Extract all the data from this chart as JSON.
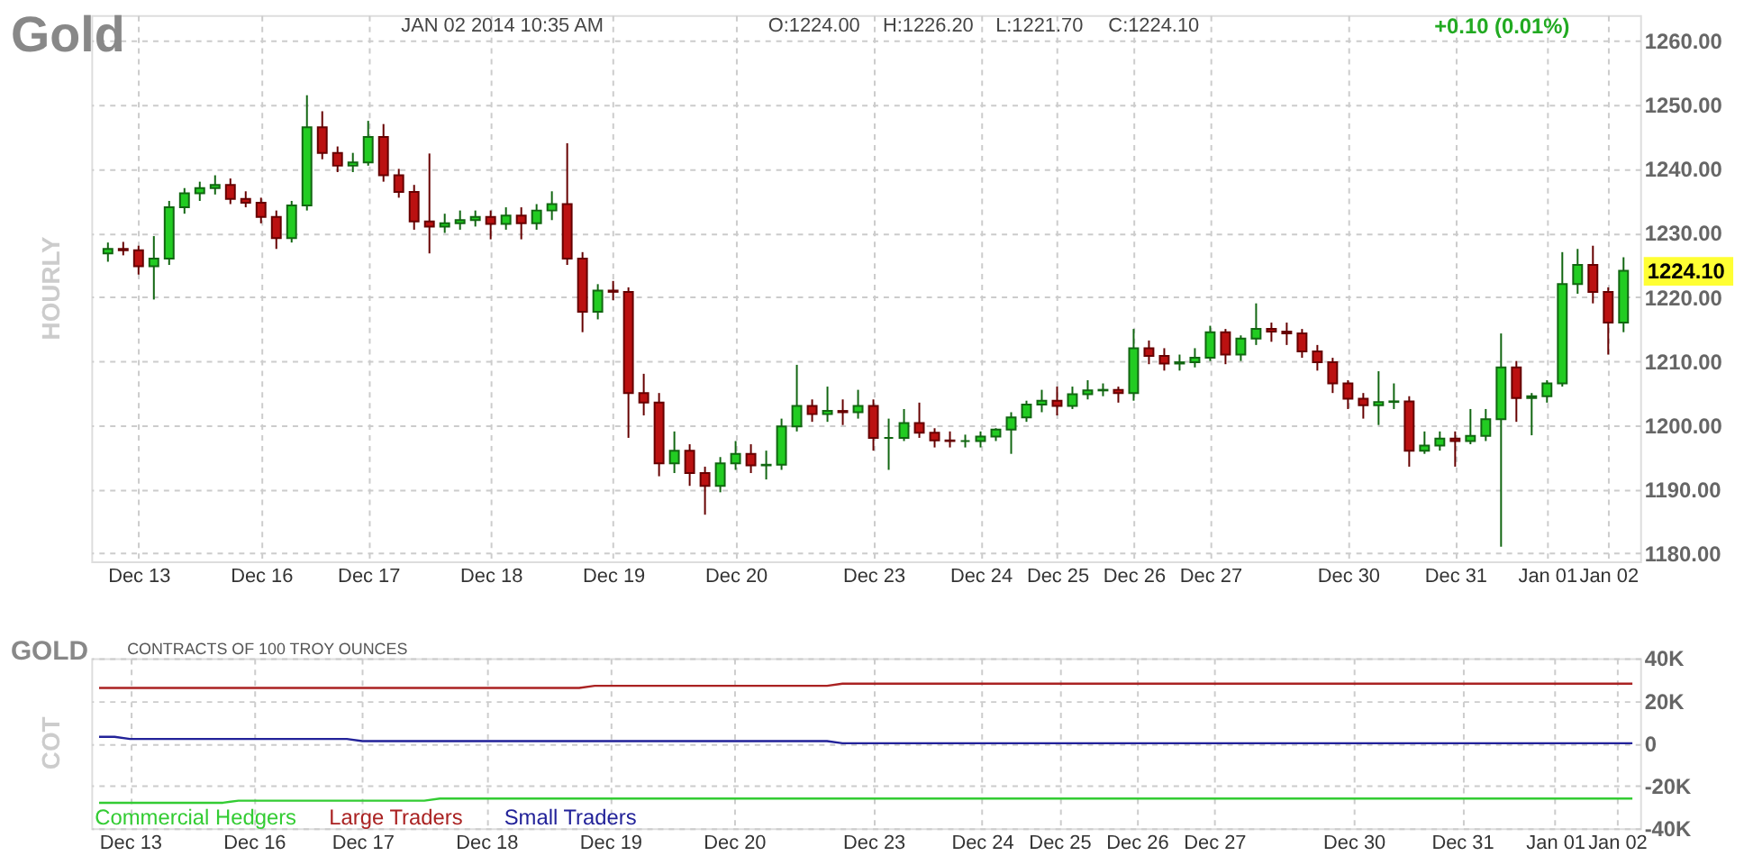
{
  "chart_data": [
    {
      "type": "candlestick",
      "title": "Gold",
      "ylabel": "HOURLY",
      "annotations": [
        "JAN 02 2014 10:35 AM",
        "O:1224.00",
        "H:1226.20",
        "L:1221.70",
        "C:1224.10",
        "+0.10 (0.01%)",
        "1224.10"
      ],
      "categories": [
        null,
        null,
        "Dec 13",
        null,
        null,
        null,
        null,
        null,
        null,
        null,
        "Dec 16",
        null,
        null,
        null,
        null,
        null,
        null,
        "Dec 17",
        null,
        null,
        null,
        null,
        null,
        null,
        null,
        "Dec 18",
        null,
        null,
        null,
        null,
        null,
        null,
        null,
        "Dec 19",
        null,
        null,
        null,
        null,
        null,
        null,
        null,
        "Dec 20",
        null,
        null,
        null,
        null,
        null,
        null,
        null,
        null,
        "Dec 23",
        null,
        null,
        null,
        null,
        null,
        null,
        "Dec 24",
        null,
        null,
        null,
        null,
        "Dec 25",
        null,
        null,
        null,
        null,
        "Dec 26",
        null,
        null,
        null,
        null,
        "Dec 27",
        null,
        null,
        null,
        null,
        null,
        null,
        null,
        null,
        "Dec 30",
        null,
        null,
        null,
        null,
        null,
        null,
        "Dec 31",
        null,
        null,
        null,
        null,
        null,
        "Jan 01",
        null,
        null,
        null,
        "Jan 02",
        null
      ],
      "ohlc": [
        [
          1226.8,
          1228.5,
          1225.5,
          1227.5
        ],
        [
          1227.5,
          1228.6,
          1226.5,
          1227.3
        ],
        [
          1227.3,
          1228,
          1223.5,
          1224.8
        ],
        [
          1224.8,
          1229.5,
          1219.6,
          1226
        ],
        [
          1226,
          1235,
          1225,
          1234
        ],
        [
          1234,
          1237,
          1233,
          1236.2
        ],
        [
          1236.2,
          1238,
          1235,
          1237
        ],
        [
          1237,
          1239,
          1236,
          1237.5
        ],
        [
          1237.5,
          1238.5,
          1234.5,
          1235.3
        ],
        [
          1235.3,
          1236.5,
          1234,
          1234.7
        ],
        [
          1234.7,
          1235.5,
          1231.5,
          1232.5
        ],
        [
          1232.5,
          1233.5,
          1227.5,
          1229.2
        ],
        [
          1229.2,
          1235,
          1228.5,
          1234.3
        ],
        [
          1234.3,
          1251.5,
          1233.5,
          1246.5
        ],
        [
          1246.5,
          1249,
          1241.5,
          1242.5
        ],
        [
          1242.5,
          1243.5,
          1239.5,
          1240.5
        ],
        [
          1240.5,
          1242.5,
          1239.5,
          1241
        ],
        [
          1241,
          1247.5,
          1240.5,
          1245
        ],
        [
          1245,
          1247,
          1238,
          1239
        ],
        [
          1239,
          1240,
          1235.5,
          1236.4
        ],
        [
          1236.4,
          1237.5,
          1230.5,
          1231.8
        ],
        [
          1231.8,
          1242.4,
          1226.8,
          1231
        ],
        [
          1231,
          1233,
          1230,
          1231.5
        ],
        [
          1231.5,
          1233.5,
          1230.5,
          1232
        ],
        [
          1232,
          1233.5,
          1231,
          1232.5
        ],
        [
          1232.5,
          1233.5,
          1229,
          1231.4
        ],
        [
          1231.4,
          1234,
          1230.5,
          1232.7
        ],
        [
          1232.7,
          1234,
          1229,
          1231.5
        ],
        [
          1231.5,
          1234.5,
          1230.5,
          1233.5
        ],
        [
          1233.5,
          1236.5,
          1232,
          1234.5
        ],
        [
          1234.5,
          1244,
          1225,
          1226
        ],
        [
          1226,
          1227,
          1214.5,
          1217.7
        ],
        [
          1217.7,
          1222,
          1216.5,
          1221
        ],
        [
          1221,
          1222.5,
          1219.5,
          1220.8
        ],
        [
          1220.8,
          1221.5,
          1198,
          1205
        ],
        [
          1205,
          1208,
          1201.5,
          1203.5
        ],
        [
          1203.5,
          1205,
          1192,
          1194
        ],
        [
          1194,
          1199,
          1192.5,
          1196
        ],
        [
          1196,
          1197,
          1190.5,
          1192.5
        ],
        [
          1192.5,
          1193.5,
          1186,
          1190.5
        ],
        [
          1190.5,
          1195,
          1189.5,
          1194
        ],
        [
          1194,
          1197.5,
          1193,
          1195.5
        ],
        [
          1195.5,
          1197,
          1192.5,
          1193.7
        ],
        [
          1193.7,
          1196,
          1191.5,
          1193.8
        ],
        [
          1193.8,
          1201,
          1193,
          1199.8
        ],
        [
          1199.8,
          1209.4,
          1199,
          1203
        ],
        [
          1203,
          1204,
          1200.5,
          1201.7
        ],
        [
          1201.7,
          1206,
          1200.5,
          1202.2
        ],
        [
          1202.2,
          1204,
          1200,
          1202
        ],
        [
          1202,
          1205.5,
          1201,
          1203
        ],
        [
          1203,
          1204,
          1196,
          1198
        ],
        [
          1198,
          1201,
          1193,
          1198
        ],
        [
          1198,
          1202.5,
          1197.5,
          1200.3
        ],
        [
          1200.3,
          1203.5,
          1198,
          1198.8
        ],
        [
          1198.8,
          1199.5,
          1196.5,
          1197.6
        ],
        [
          1197.6,
          1199,
          1196.5,
          1197.5
        ],
        [
          1197.5,
          1198.5,
          1196.5,
          1197.5
        ],
        [
          1197.5,
          1199,
          1196.5,
          1198.2
        ],
        [
          1198.2,
          1199.5,
          1197.5,
          1199.3
        ],
        [
          1199.3,
          1202,
          1195.5,
          1201.2
        ],
        [
          1201.2,
          1203.8,
          1200.5,
          1203.2
        ],
        [
          1203.2,
          1205.5,
          1202,
          1203.8
        ],
        [
          1203.8,
          1206,
          1201.5,
          1203
        ],
        [
          1203,
          1206,
          1202.5,
          1204.8
        ],
        [
          1204.8,
          1207,
          1204,
          1205.4
        ],
        [
          1205.4,
          1206.5,
          1204.5,
          1205.5
        ],
        [
          1205.5,
          1206,
          1203.5,
          1205
        ],
        [
          1205,
          1215,
          1203.8,
          1212
        ],
        [
          1212,
          1213.2,
          1209.5,
          1210.8
        ],
        [
          1210.8,
          1212,
          1208.5,
          1209.6
        ],
        [
          1209.6,
          1211,
          1208.5,
          1209.8
        ],
        [
          1209.8,
          1212,
          1209,
          1210.5
        ],
        [
          1210.5,
          1215.5,
          1210,
          1214.5
        ],
        [
          1214.5,
          1215,
          1209.5,
          1211
        ],
        [
          1211,
          1214,
          1210,
          1213.5
        ],
        [
          1213.5,
          1219,
          1212.5,
          1215
        ],
        [
          1215,
          1216,
          1213,
          1214.6
        ],
        [
          1214.6,
          1216,
          1212.5,
          1214.3
        ],
        [
          1214.3,
          1215,
          1210.5,
          1211.5
        ],
        [
          1211.5,
          1212.5,
          1208.5,
          1209.8
        ],
        [
          1209.8,
          1210.5,
          1205,
          1206.5
        ],
        [
          1206.5,
          1207,
          1202.5,
          1204.1
        ],
        [
          1204.1,
          1205,
          1201,
          1203.1
        ],
        [
          1203.1,
          1208.4,
          1200,
          1203.6
        ],
        [
          1203.6,
          1206.5,
          1202.5,
          1203.7
        ],
        [
          1203.7,
          1204.5,
          1193.5,
          1196
        ],
        [
          1196,
          1199,
          1195.5,
          1196.8
        ],
        [
          1196.8,
          1199,
          1196,
          1197.9
        ],
        [
          1197.9,
          1199,
          1193.5,
          1197.5
        ],
        [
          1197.5,
          1202.5,
          1197,
          1198.3
        ],
        [
          1198.3,
          1202.5,
          1197.5,
          1200.9
        ],
        [
          1200.9,
          1214.3,
          1181,
          1209
        ],
        [
          1209,
          1210,
          1200.5,
          1204.2
        ],
        [
          1204.2,
          1205,
          1198.4,
          1204.5
        ],
        [
          1204.5,
          1207,
          1203.5,
          1206.5
        ],
        [
          1206.5,
          1227,
          1206,
          1222
        ],
        [
          1222,
          1227.5,
          1220.5,
          1225
        ],
        [
          1225,
          1228,
          1219,
          1220.8
        ],
        [
          1220.8,
          1221.5,
          1211,
          1216
        ],
        [
          1216,
          1226.2,
          1214.5,
          1224.1
        ]
      ],
      "ylim": [
        1178.7,
        1264
      ],
      "yticks": [
        {
          "value": 1180,
          "label": "1180.00"
        },
        {
          "value": 1190,
          "label": "1190.00"
        },
        {
          "value": 1200,
          "label": "1200.00"
        },
        {
          "value": 1210,
          "label": "1210.00"
        },
        {
          "value": 1220,
          "label": "1220.00"
        },
        {
          "value": 1230,
          "label": "1230.00"
        },
        {
          "value": 1240,
          "label": "1240.00"
        },
        {
          "value": 1250,
          "label": "1250.00"
        },
        {
          "value": 1260,
          "label": "1260.00"
        }
      ],
      "grid": true
    },
    {
      "type": "line",
      "title": "GOLD",
      "subtitle": "CONTRACTS OF 100 TROY OUNCES",
      "ylabel": "COT",
      "categories": [
        null,
        null,
        "Dec 13",
        null,
        null,
        null,
        null,
        null,
        null,
        null,
        "Dec 16",
        null,
        null,
        null,
        null,
        null,
        null,
        "Dec 17",
        null,
        null,
        null,
        null,
        null,
        null,
        null,
        "Dec 18",
        null,
        null,
        null,
        null,
        null,
        null,
        null,
        "Dec 19",
        null,
        null,
        null,
        null,
        null,
        null,
        null,
        "Dec 20",
        null,
        null,
        null,
        null,
        null,
        null,
        null,
        null,
        "Dec 23",
        null,
        null,
        null,
        null,
        null,
        null,
        "Dec 24",
        null,
        null,
        null,
        null,
        "Dec 25",
        null,
        null,
        null,
        null,
        "Dec 26",
        null,
        null,
        null,
        null,
        "Dec 27",
        null,
        null,
        null,
        null,
        null,
        null,
        null,
        null,
        "Dec 30",
        null,
        null,
        null,
        null,
        null,
        null,
        "Dec 31",
        null,
        null,
        null,
        null,
        null,
        "Jan 01",
        null,
        null,
        null,
        "Jan 02",
        null
      ],
      "series": [
        {
          "name": "Commercial Hedgers",
          "color": "#33cc33",
          "values": [
            -28000,
            -28000,
            -28000,
            -28000,
            -28000,
            -28000,
            -28000,
            -28000,
            -28000,
            -27000,
            -27000,
            -27000,
            -27000,
            -27000,
            -27000,
            -27000,
            -27000,
            -27000,
            -27000,
            -27000,
            -27000,
            -27000,
            -26000,
            -26000,
            -26000,
            -26000,
            -26000,
            -26000,
            -26000,
            -26000,
            -26000,
            -26000,
            -26000,
            -26000,
            -26000,
            -26000,
            -26000,
            -26000,
            -26000,
            -26000,
            -26000,
            -26000,
            -26000,
            -26000,
            -26000,
            -26000,
            -26000,
            -26000,
            -26000,
            -26000,
            -26000,
            -26000,
            -26000,
            -26000,
            -26000,
            -26000,
            -26000,
            -26000,
            -26000,
            -26000,
            -26000,
            -26000,
            -26000,
            -26000,
            -26000,
            -26000,
            -26000,
            -26000,
            -26000,
            -26000,
            -26000,
            -26000,
            -26000,
            -26000,
            -26000,
            -26000,
            -26000,
            -26000,
            -26000,
            -26000,
            -26000,
            -26000,
            -26000,
            -26000,
            -26000,
            -26000,
            -26000,
            -26000,
            -26000,
            -26000,
            -26000,
            -26000,
            -26000,
            -26000,
            -26000,
            -26000,
            -26000,
            -26000,
            -26000,
            -26000
          ]
        },
        {
          "name": "Large Traders",
          "color": "#aa2222",
          "values": [
            26000,
            26000,
            26000,
            26000,
            26000,
            26000,
            26000,
            26000,
            26000,
            26000,
            26000,
            26000,
            26000,
            26000,
            26000,
            26000,
            26000,
            26000,
            26000,
            26000,
            26000,
            26000,
            26000,
            26000,
            26000,
            26000,
            26000,
            26000,
            26000,
            26000,
            26000,
            26000,
            27000,
            27000,
            27000,
            27000,
            27000,
            27000,
            27000,
            27000,
            27000,
            27000,
            27000,
            27000,
            27000,
            27000,
            27000,
            27000,
            28000,
            28000,
            28000,
            28000,
            28000,
            28000,
            28000,
            28000,
            28000,
            28000,
            28000,
            28000,
            28000,
            28000,
            28000,
            28000,
            28000,
            28000,
            28000,
            28000,
            28000,
            28000,
            28000,
            28000,
            28000,
            28000,
            28000,
            28000,
            28000,
            28000,
            28000,
            28000,
            28000,
            28000,
            28000,
            28000,
            28000,
            28000,
            28000,
            28000,
            28000,
            28000,
            28000,
            28000,
            28000,
            28000,
            28000,
            28000,
            28000,
            28000,
            28000,
            28000
          ]
        },
        {
          "name": "Small Traders",
          "color": "#222299",
          "values": [
            3000,
            3000,
            2000,
            2000,
            2000,
            2000,
            2000,
            2000,
            2000,
            2000,
            2000,
            2000,
            2000,
            2000,
            2000,
            2000,
            2000,
            1000,
            1000,
            1000,
            1000,
            1000,
            1000,
            1000,
            1000,
            1000,
            1000,
            1000,
            1000,
            1000,
            1000,
            1000,
            1000,
            1000,
            1000,
            1000,
            1000,
            1000,
            1000,
            1000,
            1000,
            1000,
            1000,
            1000,
            1000,
            1000,
            1000,
            1000,
            0,
            0,
            0,
            0,
            0,
            0,
            0,
            0,
            0,
            0,
            0,
            0,
            0,
            0,
            0,
            0,
            0,
            0,
            0,
            0,
            0,
            0,
            0,
            0,
            0,
            0,
            0,
            0,
            0,
            0,
            0,
            0,
            0,
            0,
            0,
            0,
            0,
            0,
            0,
            0,
            0,
            0,
            0,
            0,
            0,
            0,
            0,
            0,
            0,
            0,
            0,
            0
          ]
        }
      ],
      "ylim": [
        -40000,
        40000
      ],
      "yticks": [
        {
          "value": -40000,
          "label": "-40K"
        },
        {
          "value": -20000,
          "label": "-20K"
        },
        0,
        {
          "value": 20000,
          "label": "20K"
        },
        {
          "value": 40000,
          "label": "40K"
        }
      ],
      "grid": true,
      "legend": "bottom left"
    }
  ]
}
